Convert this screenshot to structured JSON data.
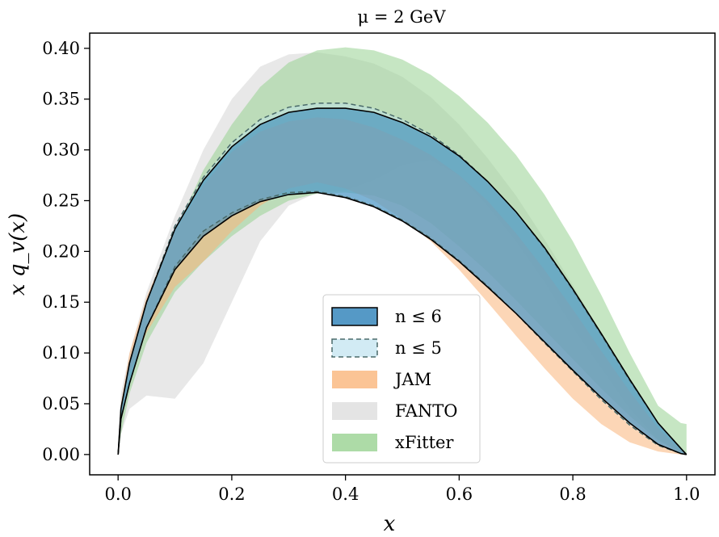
{
  "chart_data": {
    "type": "area",
    "title": "μ = 2 GeV",
    "xlabel": "x",
    "ylabel": "x q_v(x)",
    "xlim": [
      -0.05,
      1.05
    ],
    "ylim": [
      -0.02,
      0.415
    ],
    "x_ticks": [
      0.0,
      0.2,
      0.4,
      0.6,
      0.8,
      1.0
    ],
    "x_tick_labels": [
      "0.0",
      "0.2",
      "0.4",
      "0.6",
      "0.8",
      "1.0"
    ],
    "y_ticks": [
      0.0,
      0.05,
      0.1,
      0.15,
      0.2,
      0.25,
      0.3,
      0.35,
      0.4
    ],
    "y_tick_labels": [
      "0.00",
      "0.05",
      "0.10",
      "0.15",
      "0.20",
      "0.25",
      "0.30",
      "0.35",
      "0.40"
    ],
    "grid": false,
    "legend_position": "lower-center",
    "x": [
      0.0,
      0.005,
      0.02,
      0.05,
      0.1,
      0.15,
      0.2,
      0.25,
      0.3,
      0.35,
      0.4,
      0.45,
      0.5,
      0.55,
      0.6,
      0.65,
      0.7,
      0.75,
      0.8,
      0.85,
      0.9,
      0.95,
      0.99,
      1.0
    ],
    "series": [
      {
        "name": "FANTO",
        "color": "#e4e4e4",
        "opacity": 0.85,
        "style": "fill",
        "lower": [
          0.0,
          0.02,
          0.045,
          0.058,
          0.055,
          0.09,
          0.15,
          0.21,
          0.245,
          0.258,
          0.26,
          0.27,
          0.285,
          0.29,
          0.275,
          0.245,
          0.21,
          0.17,
          0.125,
          0.085,
          0.045,
          0.015,
          0.002,
          0.0
        ],
        "upper": [
          0.0,
          0.06,
          0.1,
          0.16,
          0.235,
          0.3,
          0.35,
          0.382,
          0.394,
          0.396,
          0.392,
          0.385,
          0.372,
          0.352,
          0.325,
          0.292,
          0.255,
          0.212,
          0.167,
          0.12,
          0.074,
          0.032,
          0.006,
          0.0
        ]
      },
      {
        "name": "xFitter",
        "color": "#98d291",
        "opacity": 0.55,
        "style": "fill",
        "lower": [
          0.0,
          0.02,
          0.06,
          0.11,
          0.16,
          0.19,
          0.215,
          0.235,
          0.25,
          0.257,
          0.258,
          0.255,
          0.245,
          0.228,
          0.205,
          0.18,
          0.152,
          0.123,
          0.094,
          0.065,
          0.038,
          0.014,
          0.002,
          0.0
        ],
        "upper": [
          0.0,
          0.05,
          0.09,
          0.15,
          0.22,
          0.28,
          0.325,
          0.362,
          0.386,
          0.398,
          0.401,
          0.398,
          0.389,
          0.374,
          0.353,
          0.327,
          0.295,
          0.256,
          0.21,
          0.157,
          0.1,
          0.048,
          0.031,
          0.03
        ]
      },
      {
        "name": "JAM",
        "color": "#fab57a",
        "opacity": 0.55,
        "style": "fill",
        "lower": [
          0.0,
          0.04,
          0.08,
          0.12,
          0.165,
          0.19,
          0.22,
          0.245,
          0.262,
          0.268,
          0.262,
          0.25,
          0.232,
          0.21,
          0.182,
          0.15,
          0.117,
          0.085,
          0.055,
          0.03,
          0.012,
          0.003,
          0.0,
          0.0
        ],
        "upper": [
          0.0,
          0.05,
          0.1,
          0.155,
          0.22,
          0.265,
          0.298,
          0.318,
          0.328,
          0.332,
          0.33,
          0.322,
          0.31,
          0.295,
          0.275,
          0.25,
          0.218,
          0.182,
          0.143,
          0.102,
          0.062,
          0.026,
          0.004,
          0.0
        ]
      },
      {
        "name": "n ≤ 5",
        "color": "#bfe3ef",
        "edge": "#4a6a6a",
        "opacity": 0.45,
        "style": "dashed",
        "lower": [
          0.0,
          0.035,
          0.07,
          0.125,
          0.185,
          0.22,
          0.238,
          0.251,
          0.258,
          0.259,
          0.254,
          0.245,
          0.231,
          0.213,
          0.191,
          0.166,
          0.139,
          0.11,
          0.082,
          0.054,
          0.029,
          0.009,
          0.001,
          0.0
        ],
        "upper": [
          0.0,
          0.045,
          0.09,
          0.15,
          0.225,
          0.273,
          0.307,
          0.33,
          0.342,
          0.346,
          0.346,
          0.341,
          0.33,
          0.315,
          0.295,
          0.269,
          0.239,
          0.203,
          0.162,
          0.118,
          0.073,
          0.031,
          0.006,
          0.0
        ]
      },
      {
        "name": "n ≤ 6",
        "color": "#2a7fb8",
        "edge": "#000000",
        "opacity": 0.55,
        "style": "solid",
        "lower": [
          0.0,
          0.035,
          0.07,
          0.125,
          0.182,
          0.215,
          0.235,
          0.249,
          0.256,
          0.258,
          0.253,
          0.244,
          0.23,
          0.212,
          0.19,
          0.165,
          0.139,
          0.111,
          0.083,
          0.056,
          0.031,
          0.01,
          0.001,
          0.0
        ],
        "upper": [
          0.0,
          0.045,
          0.09,
          0.15,
          0.222,
          0.27,
          0.303,
          0.325,
          0.337,
          0.341,
          0.341,
          0.337,
          0.327,
          0.313,
          0.294,
          0.269,
          0.239,
          0.204,
          0.163,
          0.119,
          0.074,
          0.031,
          0.006,
          0.0
        ]
      }
    ],
    "legend_order": [
      "n ≤ 6",
      "n ≤ 5",
      "JAM",
      "FANTO",
      "xFitter"
    ]
  }
}
